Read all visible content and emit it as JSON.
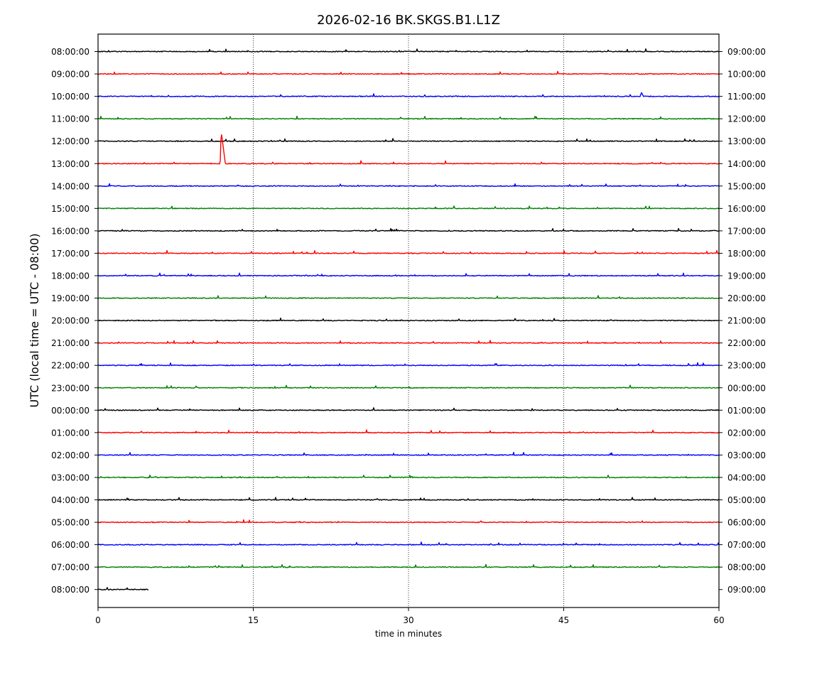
{
  "chart_data": {
    "type": "line",
    "title": "2026-02-16 BK.SKGS.B1.L1Z",
    "xlabel": "time in minutes",
    "ylabel": "UTC (local time = UTC - 08:00)",
    "xlim": [
      0,
      60
    ],
    "x_ticks": [
      0,
      15,
      30,
      45,
      60
    ],
    "grid": "vertical dotted lines at 15, 30, 45",
    "trace_colors": [
      "#000000",
      "#ff0000",
      "#0000ff",
      "#008000"
    ],
    "left_labels": [
      "08:00:00",
      "09:00:00",
      "10:00:00",
      "11:00:00",
      "12:00:00",
      "13:00:00",
      "14:00:00",
      "15:00:00",
      "16:00:00",
      "17:00:00",
      "18:00:00",
      "19:00:00",
      "20:00:00",
      "21:00:00",
      "22:00:00",
      "23:00:00",
      "00:00:00",
      "01:00:00",
      "02:00:00",
      "03:00:00",
      "04:00:00",
      "05:00:00",
      "06:00:00",
      "07:00:00",
      "08:00:00"
    ],
    "right_labels": [
      "09:00:00",
      "10:00:00",
      "11:00:00",
      "12:00:00",
      "13:00:00",
      "14:00:00",
      "15:00:00",
      "16:00:00",
      "17:00:00",
      "18:00:00",
      "19:00:00",
      "20:00:00",
      "21:00:00",
      "22:00:00",
      "23:00:00",
      "00:00:00",
      "01:00:00",
      "02:00:00",
      "03:00:00",
      "04:00:00",
      "05:00:00",
      "06:00:00",
      "07:00:00",
      "08:00:00",
      "09:00:00"
    ],
    "trace_end_minutes": [
      60,
      60,
      60,
      60,
      60,
      60,
      60,
      60,
      60,
      60,
      60,
      60,
      60,
      60,
      60,
      60,
      60,
      60,
      60,
      60,
      60,
      60,
      60,
      60,
      4.9
    ],
    "events": [
      {
        "row": 5,
        "start_minute": 11.8,
        "peak_minute": 11.9,
        "end_minute": 12.3,
        "amplitude_rows": 1.45,
        "note": "large spike on 13:00:00 trace"
      },
      {
        "row": 2,
        "start_minute": 52.4,
        "peak_minute": 52.5,
        "end_minute": 52.7,
        "amplitude_rows": 0.18
      }
    ]
  }
}
